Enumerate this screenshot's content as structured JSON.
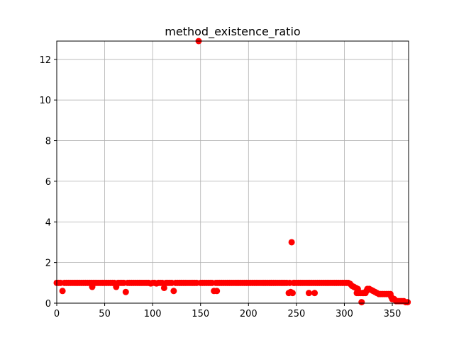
{
  "chart_data": {
    "type": "scatter",
    "title": "method_existence_ratio",
    "xlabel": "",
    "ylabel": "",
    "xlim": [
      0,
      367
    ],
    "ylim": [
      0,
      12.9
    ],
    "grid": true,
    "marker_color": "#ff0000",
    "x_ticks": [
      0,
      50,
      100,
      150,
      200,
      250,
      300,
      350
    ],
    "y_ticks": [
      0,
      2,
      4,
      6,
      8,
      10,
      12
    ],
    "points": [
      [
        0,
        1
      ],
      [
        2,
        1
      ],
      [
        4,
        1
      ],
      [
        6,
        0.6
      ],
      [
        8,
        1
      ],
      [
        10,
        1
      ],
      [
        12,
        1
      ],
      [
        14,
        1
      ],
      [
        16,
        1
      ],
      [
        18,
        1
      ],
      [
        20,
        1
      ],
      [
        22,
        1
      ],
      [
        24,
        1
      ],
      [
        26,
        1
      ],
      [
        28,
        1
      ],
      [
        30,
        1
      ],
      [
        32,
        1
      ],
      [
        34,
        1
      ],
      [
        36,
        1
      ],
      [
        37,
        0.8
      ],
      [
        38,
        1
      ],
      [
        40,
        1
      ],
      [
        42,
        1
      ],
      [
        44,
        1
      ],
      [
        46,
        1
      ],
      [
        48,
        1
      ],
      [
        50,
        1
      ],
      [
        52,
        1
      ],
      [
        54,
        1
      ],
      [
        56,
        1
      ],
      [
        58,
        1
      ],
      [
        60,
        1
      ],
      [
        62,
        0.8
      ],
      [
        64,
        1
      ],
      [
        66,
        1
      ],
      [
        68,
        1
      ],
      [
        70,
        1
      ],
      [
        72,
        0.55
      ],
      [
        74,
        1
      ],
      [
        76,
        1
      ],
      [
        78,
        1
      ],
      [
        80,
        1
      ],
      [
        82,
        1
      ],
      [
        84,
        1
      ],
      [
        86,
        1
      ],
      [
        88,
        1
      ],
      [
        90,
        1
      ],
      [
        92,
        1
      ],
      [
        94,
        1
      ],
      [
        96,
        1
      ],
      [
        98,
        0.97
      ],
      [
        100,
        1
      ],
      [
        102,
        1
      ],
      [
        104,
        0.97
      ],
      [
        106,
        1
      ],
      [
        108,
        1
      ],
      [
        110,
        1
      ],
      [
        112,
        0.75
      ],
      [
        114,
        1
      ],
      [
        116,
        1
      ],
      [
        118,
        1
      ],
      [
        120,
        1
      ],
      [
        122,
        0.6
      ],
      [
        124,
        1
      ],
      [
        126,
        1
      ],
      [
        128,
        1
      ],
      [
        130,
        1
      ],
      [
        132,
        1
      ],
      [
        134,
        1
      ],
      [
        136,
        1
      ],
      [
        138,
        1
      ],
      [
        140,
        1
      ],
      [
        142,
        1
      ],
      [
        144,
        1
      ],
      [
        146,
        1
      ],
      [
        148,
        12.9
      ],
      [
        150,
        1
      ],
      [
        152,
        1
      ],
      [
        154,
        1
      ],
      [
        156,
        1
      ],
      [
        158,
        1
      ],
      [
        160,
        1
      ],
      [
        162,
        1
      ],
      [
        164,
        0.6
      ],
      [
        166,
        1
      ],
      [
        167,
        0.6
      ],
      [
        168,
        1
      ],
      [
        170,
        1
      ],
      [
        172,
        1
      ],
      [
        174,
        1
      ],
      [
        176,
        1
      ],
      [
        178,
        1
      ],
      [
        180,
        1
      ],
      [
        182,
        1
      ],
      [
        184,
        1
      ],
      [
        186,
        1
      ],
      [
        188,
        1
      ],
      [
        190,
        1
      ],
      [
        192,
        1
      ],
      [
        194,
        1
      ],
      [
        196,
        1
      ],
      [
        198,
        1
      ],
      [
        200,
        1
      ],
      [
        202,
        1
      ],
      [
        204,
        1
      ],
      [
        206,
        1
      ],
      [
        208,
        1
      ],
      [
        210,
        1
      ],
      [
        212,
        1
      ],
      [
        214,
        1
      ],
      [
        216,
        1
      ],
      [
        218,
        1
      ],
      [
        220,
        1
      ],
      [
        222,
        1
      ],
      [
        224,
        1
      ],
      [
        226,
        1
      ],
      [
        228,
        1
      ],
      [
        230,
        1
      ],
      [
        232,
        1
      ],
      [
        234,
        1
      ],
      [
        236,
        1
      ],
      [
        238,
        1
      ],
      [
        240,
        1
      ],
      [
        242,
        0.5
      ],
      [
        243,
        1
      ],
      [
        244,
        0.55
      ],
      [
        245,
        3.0
      ],
      [
        246,
        0.5
      ],
      [
        247,
        1
      ],
      [
        248,
        1
      ],
      [
        250,
        1
      ],
      [
        252,
        1
      ],
      [
        254,
        1
      ],
      [
        256,
        1
      ],
      [
        258,
        1
      ],
      [
        260,
        1
      ],
      [
        262,
        1
      ],
      [
        263,
        0.5
      ],
      [
        264,
        1
      ],
      [
        266,
        1
      ],
      [
        268,
        1
      ],
      [
        269,
        0.5
      ],
      [
        270,
        1
      ],
      [
        272,
        1
      ],
      [
        274,
        1
      ],
      [
        276,
        1
      ],
      [
        278,
        1
      ],
      [
        280,
        1
      ],
      [
        282,
        1
      ],
      [
        284,
        1
      ],
      [
        286,
        1
      ],
      [
        288,
        1
      ],
      [
        290,
        1
      ],
      [
        292,
        1
      ],
      [
        294,
        1
      ],
      [
        296,
        1
      ],
      [
        298,
        1
      ],
      [
        300,
        1
      ],
      [
        302,
        1
      ],
      [
        304,
        1
      ],
      [
        306,
        0.95
      ],
      [
        308,
        0.85
      ],
      [
        310,
        0.8
      ],
      [
        312,
        0.75
      ],
      [
        313,
        0.5
      ],
      [
        314,
        0.7
      ],
      [
        315,
        0.5
      ],
      [
        317,
        0.5
      ],
      [
        318,
        0.05
      ],
      [
        319,
        0.5
      ],
      [
        320,
        0.5
      ],
      [
        322,
        0.5
      ],
      [
        323,
        0.6
      ],
      [
        324,
        0.7
      ],
      [
        326,
        0.7
      ],
      [
        328,
        0.65
      ],
      [
        330,
        0.6
      ],
      [
        332,
        0.55
      ],
      [
        334,
        0.5
      ],
      [
        336,
        0.45
      ],
      [
        338,
        0.45
      ],
      [
        340,
        0.45
      ],
      [
        342,
        0.45
      ],
      [
        344,
        0.45
      ],
      [
        346,
        0.45
      ],
      [
        348,
        0.45
      ],
      [
        349,
        0.3
      ],
      [
        350,
        0.2
      ],
      [
        352,
        0.2
      ],
      [
        354,
        0.1
      ],
      [
        356,
        0.1
      ],
      [
        358,
        0.1
      ],
      [
        360,
        0.1
      ],
      [
        362,
        0.1
      ],
      [
        364,
        0.05
      ],
      [
        366,
        0.05
      ]
    ]
  }
}
